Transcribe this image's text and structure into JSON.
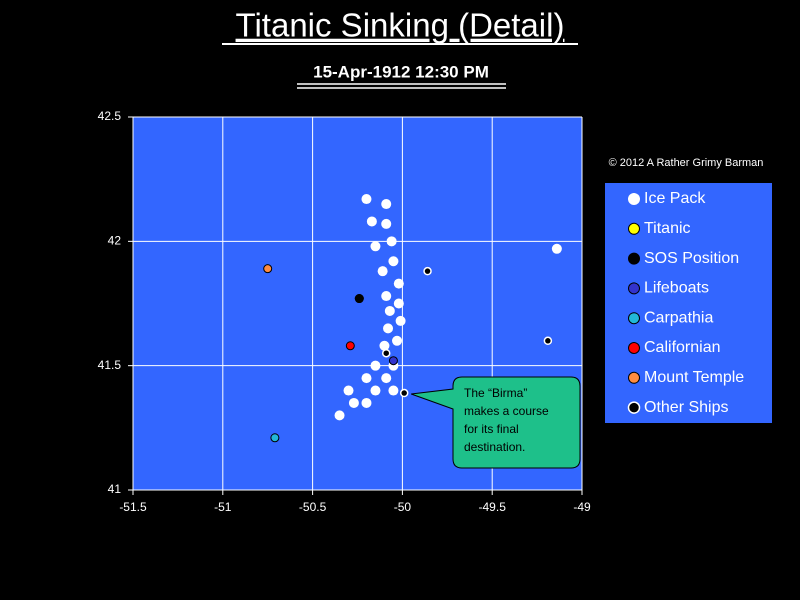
{
  "chart_data": {
    "type": "scatter",
    "title": "Titanic Sinking (Detail)",
    "subtitle": "15-Apr-1912  12:30 PM",
    "copyright": "© 2012  A Rather Grimy Barman",
    "annotation": [
      "The “Birma”",
      "makes a course",
      "for its final",
      "destination."
    ],
    "xlim": [
      -51.5,
      -49
    ],
    "xticks": [
      -51.5,
      -51,
      -50.5,
      -50,
      -49.5,
      -49
    ],
    "ylim": [
      41,
      42.5
    ],
    "yticks": [
      41,
      41.5,
      42,
      42.5
    ],
    "grid": true,
    "legend": "right",
    "background": "#3366ff",
    "series": [
      {
        "name": "Ice Pack",
        "color": "#ffffff",
        "x": [
          -50.2,
          -50.09,
          -50.17,
          -50.09,
          -50.15,
          -50.06,
          -49.14,
          -50.05,
          -50.11,
          -50.02,
          -50.09,
          -50.02,
          -50.07,
          -50.01,
          -50.08,
          -50.03,
          -50.1,
          -50.15,
          -50.05,
          -50.2,
          -50.09,
          -50.3,
          -50.15,
          -50.05,
          -50.27,
          -50.2,
          -50.35
        ],
        "y": [
          42.17,
          42.15,
          42.08,
          42.07,
          41.98,
          42.0,
          41.97,
          41.92,
          41.88,
          41.83,
          41.78,
          41.75,
          41.72,
          41.68,
          41.65,
          41.6,
          41.58,
          41.5,
          41.5,
          41.45,
          41.45,
          41.4,
          41.4,
          41.4,
          41.35,
          41.35,
          41.3
        ]
      },
      {
        "name": "Titanic",
        "color": "#ffff00",
        "x": [
          -50.24
        ],
        "y": [
          41.77
        ]
      },
      {
        "name": "SOS Position",
        "color": "#000000",
        "x": [
          -50.24
        ],
        "y": [
          41.77
        ]
      },
      {
        "name": "Lifeboats",
        "color": "#3333cc",
        "x": [
          -50.05
        ],
        "y": [
          41.52
        ]
      },
      {
        "name": "Carpathia",
        "color": "#22b8d8",
        "x": [
          -50.71
        ],
        "y": [
          41.21
        ]
      },
      {
        "name": "Californian",
        "color": "#ff0000",
        "x": [
          -50.29
        ],
        "y": [
          41.58
        ]
      },
      {
        "name": "Mount Temple",
        "color": "#ff8c40",
        "x": [
          -50.75
        ],
        "y": [
          41.89
        ]
      },
      {
        "name": "Other Ships",
        "color": "#000000",
        "x": [
          -49.86,
          -49.19,
          -50.09,
          -49.99
        ],
        "y": [
          41.88,
          41.6,
          41.55,
          41.39
        ]
      }
    ]
  }
}
